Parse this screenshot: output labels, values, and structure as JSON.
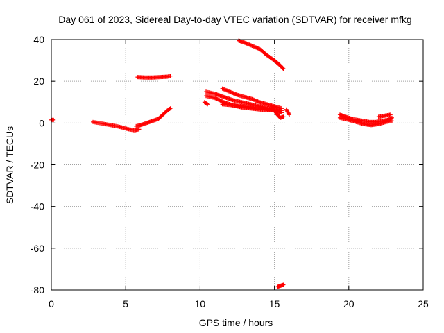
{
  "chart_data": {
    "type": "scatter",
    "title": "Day 061 of 2023, Sidereal Day-to-day VTEC variation (SDTVAR) for receiver mfkg",
    "xlabel": "GPS time / hours",
    "ylabel": "SDTVAR / TECUs",
    "xlim": [
      0,
      25
    ],
    "ylim": [
      -80,
      40
    ],
    "xticks": [
      0,
      5,
      10,
      15,
      20,
      25
    ],
    "yticks": [
      -80,
      -60,
      -40,
      -20,
      0,
      20,
      40
    ],
    "grid": true,
    "marker_color": "#ff0000",
    "series": [
      {
        "name": "seg-00",
        "x": [
          0.0,
          0.15
        ],
        "y": [
          1.5,
          1.5
        ]
      },
      {
        "name": "seg-01",
        "x": [
          2.8,
          3.2,
          3.6,
          4.0,
          4.4,
          4.8,
          5.2,
          5.6,
          5.9
        ],
        "y": [
          0.5,
          0.0,
          -0.5,
          -1.0,
          -1.5,
          -2.2,
          -3.0,
          -3.5,
          -3.0
        ]
      },
      {
        "name": "seg-02",
        "x": [
          5.7,
          6.0,
          6.4,
          6.8,
          7.2,
          7.5,
          7.8,
          8.0
        ],
        "y": [
          -1.5,
          -1.0,
          0.0,
          1.0,
          2.0,
          4.0,
          6.0,
          7.0
        ]
      },
      {
        "name": "seg-03",
        "x": [
          5.8,
          6.3,
          6.8,
          7.3,
          7.8,
          8.0
        ],
        "y": [
          22.0,
          21.8,
          21.8,
          22.0,
          22.2,
          22.5
        ]
      },
      {
        "name": "seg-04",
        "x": [
          10.3,
          10.5
        ],
        "y": [
          10.0,
          9.0
        ]
      },
      {
        "name": "seg-05",
        "x": [
          10.4,
          11.0,
          11.6,
          12.2,
          12.8,
          13.4,
          14.0,
          14.6,
          15.2,
          15.5
        ],
        "y": [
          15.0,
          14.0,
          12.5,
          11.0,
          10.0,
          9.0,
          8.0,
          7.0,
          6.0,
          5.0
        ]
      },
      {
        "name": "seg-06",
        "x": [
          10.4,
          11.0,
          11.6,
          12.2,
          12.8,
          13.4,
          14.0,
          14.6,
          15.2,
          15.5
        ],
        "y": [
          13.0,
          12.0,
          10.0,
          8.5,
          7.5,
          7.0,
          6.5,
          6.2,
          6.0,
          6.0
        ]
      },
      {
        "name": "seg-07",
        "x": [
          11.5,
          12.0,
          12.5,
          13.0,
          13.5,
          14.0,
          14.5,
          15.0,
          15.5
        ],
        "y": [
          16.5,
          15.0,
          13.5,
          12.5,
          11.5,
          10.0,
          9.0,
          8.0,
          7.0
        ]
      },
      {
        "name": "seg-08",
        "x": [
          11.5,
          12.2,
          12.9,
          13.6,
          14.3,
          15.0,
          15.5
        ],
        "y": [
          9.0,
          8.5,
          8.0,
          7.5,
          7.0,
          6.0,
          5.0
        ]
      },
      {
        "name": "seg-09",
        "x": [
          14.8,
          15.0,
          15.2,
          15.4,
          15.6
        ],
        "y": [
          8.0,
          6.0,
          4.0,
          2.5,
          3.0
        ]
      },
      {
        "name": "seg-10",
        "x": [
          15.8,
          16.0
        ],
        "y": [
          6.5,
          4.0
        ]
      },
      {
        "name": "seg-11",
        "x": [
          12.6,
          13.0,
          13.5,
          14.0,
          14.5,
          15.0,
          15.4,
          15.6
        ],
        "y": [
          39.5,
          38.5,
          37.0,
          35.5,
          32.5,
          30.0,
          27.5,
          26.0
        ]
      },
      {
        "name": "seg-12",
        "x": [
          15.2,
          15.4,
          15.6
        ],
        "y": [
          -78.5,
          -78.0,
          -77.5
        ]
      },
      {
        "name": "seg-13",
        "x": [
          19.4,
          19.8,
          20.2,
          20.6,
          21.0,
          21.4,
          21.8,
          22.2,
          22.6,
          22.9
        ],
        "y": [
          4.0,
          3.0,
          2.0,
          1.5,
          1.0,
          0.5,
          0.5,
          1.0,
          1.5,
          2.5
        ]
      },
      {
        "name": "seg-14",
        "x": [
          19.4,
          20.0,
          20.5,
          21.0,
          21.5,
          22.0,
          22.5,
          22.9
        ],
        "y": [
          2.5,
          1.5,
          0.5,
          -0.5,
          -1.0,
          -0.5,
          0.5,
          1.0
        ]
      },
      {
        "name": "seg-15",
        "x": [
          22.0,
          22.4,
          22.8
        ],
        "y": [
          3.0,
          3.5,
          4.0
        ]
      }
    ]
  }
}
